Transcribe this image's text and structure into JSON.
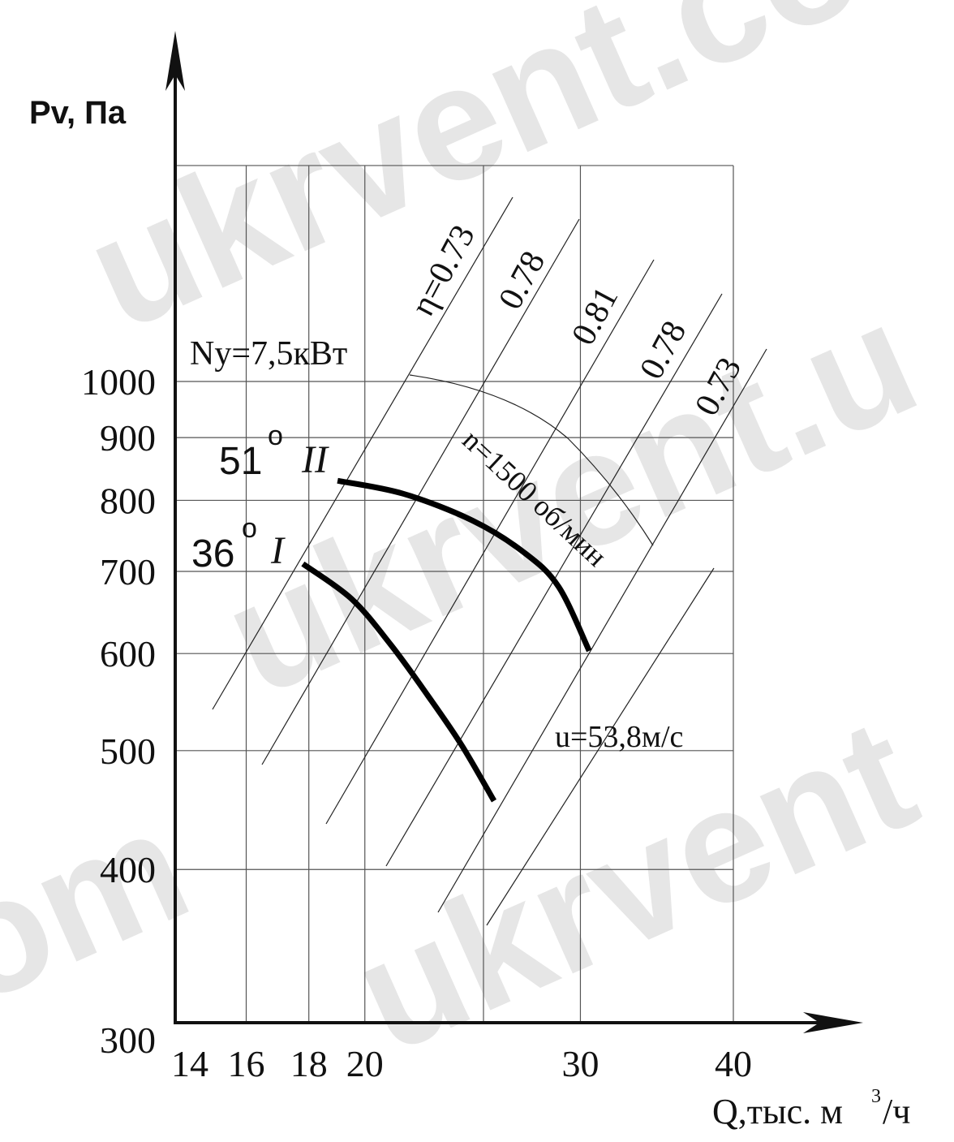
{
  "watermark": {
    "text_1": "ukrvent.co",
    "text_2": "ukrvent.u",
    "text_3": "ukrvent",
    "text_4": "ukrvent",
    "text_5": "om"
  },
  "chart_data": {
    "type": "line",
    "title": "",
    "xlabel": "Q,тыс. м",
    "xlabel_sup": "3",
    "xlabel_tail": "/ч",
    "ylabel": "Pv, Па",
    "x_scale": "log",
    "y_scale": "log",
    "xlim": [
      14,
      40
    ],
    "ylim": [
      300,
      1500
    ],
    "x_ticks": [
      "14",
      "16",
      "18",
      "20",
      "30",
      "40"
    ],
    "x_tick_values": [
      14,
      16,
      18,
      20,
      30,
      40
    ],
    "x_grid": [
      14,
      16,
      18,
      20,
      25,
      30,
      40
    ],
    "y_ticks": [
      "300",
      "400",
      "500",
      "600",
      "700",
      "800",
      "900",
      "1000"
    ],
    "y_tick_values": [
      300,
      400,
      500,
      600,
      700,
      800,
      900,
      1000
    ],
    "y_grid": [
      400,
      500,
      600,
      700,
      800,
      900,
      1000,
      1500
    ],
    "series": [
      {
        "name": "36° I",
        "angle": "36",
        "numeral": "I",
        "x": [
          17.8,
          19.5,
          21.0,
          22.5,
          24.0,
          25.5
        ],
        "y": [
          710,
          665,
          610,
          555,
          505,
          455
        ]
      },
      {
        "name": "51° II",
        "angle": "51",
        "numeral": "II",
        "x": [
          19.0,
          21.5,
          24.5,
          27.0,
          28.8,
          30.5
        ],
        "y": [
          830,
          810,
          770,
          725,
          680,
          603
        ]
      }
    ],
    "efficiency_lines": {
      "labels": [
        "η=0.73",
        "0.78",
        "0.81",
        "0.78",
        "0.73"
      ]
    },
    "annotations": {
      "power": "Ny=7,5кВт",
      "speed": "n=1500 об/мин",
      "tip_speed": "u=53,8м/с",
      "degree": "o"
    }
  }
}
